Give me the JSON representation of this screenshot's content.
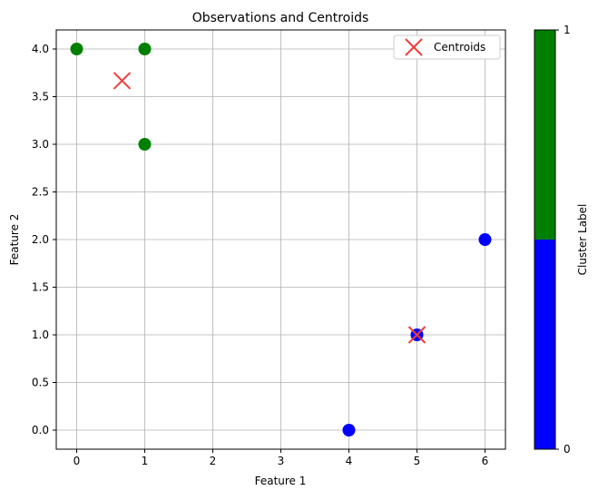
{
  "chart_data": {
    "type": "scatter",
    "title": "Observations and Centroids",
    "xlabel": "Feature 1",
    "ylabel": "Feature 2",
    "xlim": [
      -0.3,
      6.3
    ],
    "ylim": [
      -0.2,
      4.2
    ],
    "xticks": [
      0,
      1,
      2,
      3,
      4,
      5,
      6
    ],
    "yticks": [
      0.0,
      0.5,
      1.0,
      1.5,
      2.0,
      2.5,
      3.0,
      3.5,
      4.0
    ],
    "grid": true,
    "legend": {
      "position": "top-right",
      "entries": [
        "Centroids"
      ]
    },
    "observations": [
      {
        "x": 0,
        "y": 4,
        "cluster": 1
      },
      {
        "x": 1,
        "y": 4,
        "cluster": 1
      },
      {
        "x": 1,
        "y": 3,
        "cluster": 1
      },
      {
        "x": 5,
        "y": 1,
        "cluster": 0
      },
      {
        "x": 6,
        "y": 2,
        "cluster": 0
      },
      {
        "x": 4,
        "y": 0,
        "cluster": 0
      }
    ],
    "centroids": [
      {
        "x": 0.667,
        "y": 3.667
      },
      {
        "x": 5.0,
        "y": 1.0
      }
    ],
    "cluster_colors": {
      "0": "#0000ff",
      "1": "#008000"
    },
    "centroid_color": "#f03c3c",
    "colorbar": {
      "label": "Cluster Label",
      "ticks": [
        0,
        1
      ],
      "colors": [
        "#0000ff",
        "#008000"
      ]
    }
  }
}
